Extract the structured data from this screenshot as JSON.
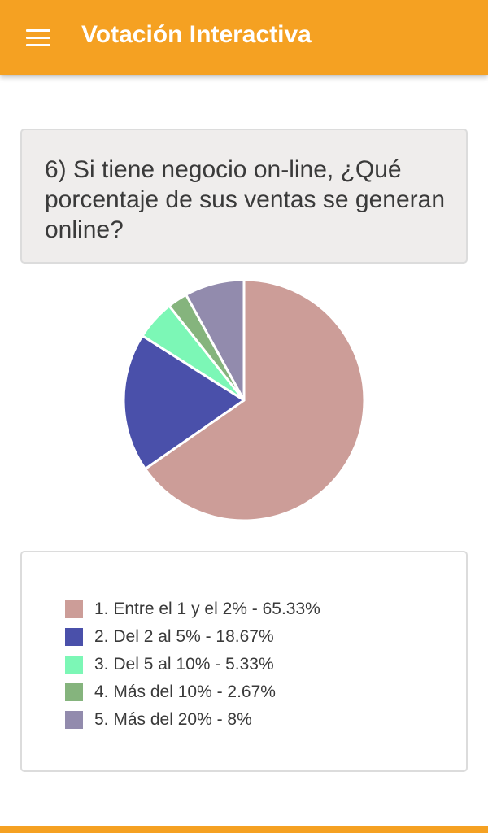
{
  "app": {
    "title": "Votación Interactiva",
    "menu_icon": "hamburger-menu-icon",
    "accent_color": "#f5a122"
  },
  "question": {
    "text": "6) Si tiene negocio on-line, ¿Qué porcentaje de sus ventas se generan online?"
  },
  "chart_data": {
    "type": "pie",
    "categories": [
      "1. Entre el 1 y el 2%",
      "2. Del 2 al 5%",
      "3. Del 5 al 10%",
      "4. Más del 10%",
      "5. Más del 20%"
    ],
    "values": [
      65.33,
      18.67,
      5.33,
      2.67,
      8
    ],
    "colors": [
      "#cc9d98",
      "#4a50aa",
      "#7cf7b6",
      "#85b47d",
      "#928bad"
    ],
    "legend": [
      {
        "label": "1. Entre el 1 y el 2% - 65.33%",
        "color": "#cc9d98"
      },
      {
        "label": "2. Del 2 al 5% - 18.67%",
        "color": "#4a50aa"
      },
      {
        "label": "3. Del 5 al 10% - 5.33%",
        "color": "#7cf7b6"
      },
      {
        "label": "4. Más del 10% - 2.67%",
        "color": "#85b47d"
      },
      {
        "label": "5. Más del 20% - 8%",
        "color": "#928bad"
      }
    ],
    "legend_placement": "below"
  }
}
